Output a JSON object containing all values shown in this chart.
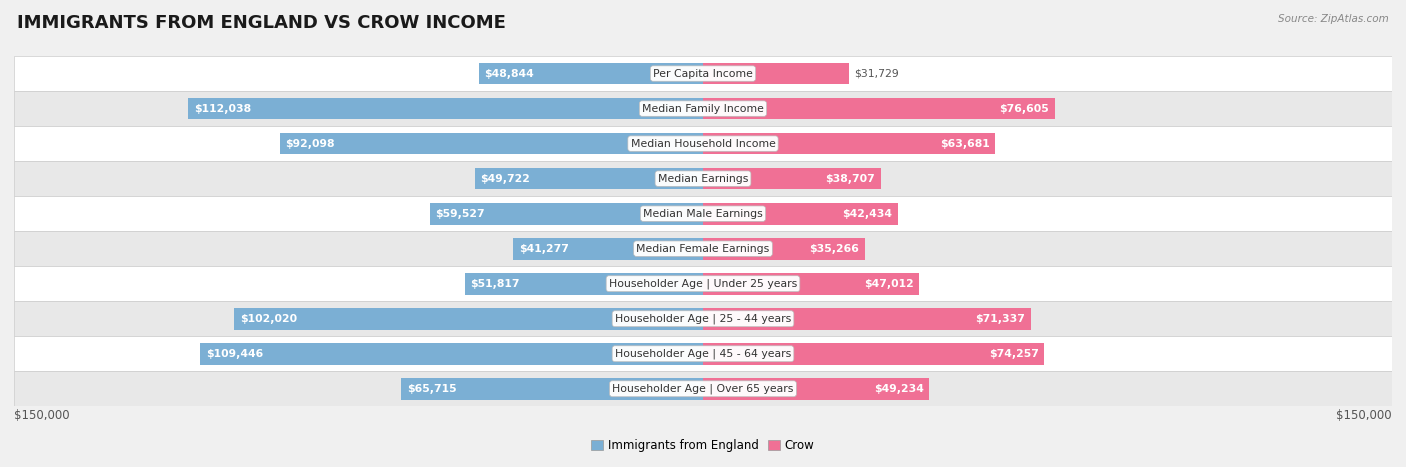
{
  "title": "IMMIGRANTS FROM ENGLAND VS CROW INCOME",
  "source": "Source: ZipAtlas.com",
  "categories": [
    "Per Capita Income",
    "Median Family Income",
    "Median Household Income",
    "Median Earnings",
    "Median Male Earnings",
    "Median Female Earnings",
    "Householder Age | Under 25 years",
    "Householder Age | 25 - 44 years",
    "Householder Age | 45 - 64 years",
    "Householder Age | Over 65 years"
  ],
  "left_values": [
    48844,
    112038,
    92098,
    49722,
    59527,
    41277,
    51817,
    102020,
    109446,
    65715
  ],
  "right_values": [
    31729,
    76605,
    63681,
    38707,
    42434,
    35266,
    47012,
    71337,
    74257,
    49234
  ],
  "left_labels": [
    "$48,844",
    "$112,038",
    "$92,098",
    "$49,722",
    "$59,527",
    "$41,277",
    "$51,817",
    "$102,020",
    "$109,446",
    "$65,715"
  ],
  "right_labels": [
    "$31,729",
    "$76,605",
    "$63,681",
    "$38,707",
    "$42,434",
    "$35,266",
    "$47,012",
    "$71,337",
    "$74,257",
    "$49,234"
  ],
  "max_value": 150000,
  "left_color": "#7bafd4",
  "right_color": "#f07095",
  "left_legend": "Immigrants from England",
  "right_legend": "Crow",
  "background_color": "#f0f0f0",
  "row_even_color": "#ffffff",
  "row_odd_color": "#e8e8e8",
  "title_fontsize": 13,
  "label_fontsize": 7.8,
  "axis_fontsize": 8.5,
  "inside_label_threshold": 0.22
}
